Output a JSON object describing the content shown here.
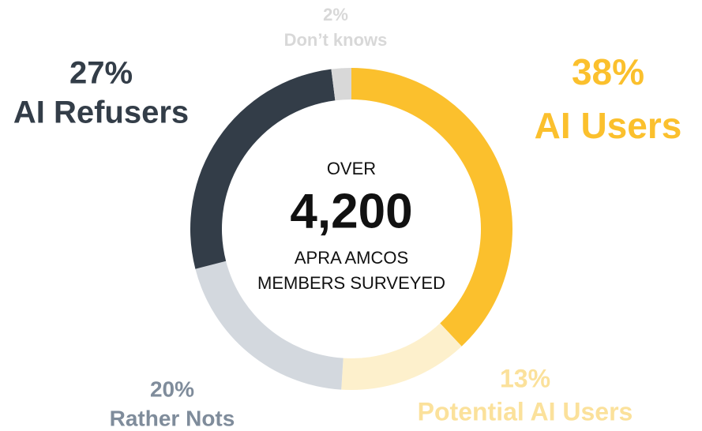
{
  "chart_data": {
    "type": "donut",
    "categories": [
      "AI Users",
      "Potential AI Users",
      "Rather Nots",
      "AI Refusers",
      "Don’t knows"
    ],
    "values": [
      38,
      13,
      20,
      27,
      2
    ],
    "value_labels": [
      "38%",
      "13%",
      "20%",
      "27%",
      "2%"
    ],
    "colors": [
      "#fbc02d",
      "#fdf0cc",
      "#d3d8de",
      "#333d48",
      "#d8d8d8"
    ],
    "label_colors": [
      "#fbc02d",
      "#fbe19b",
      "#7f8c9b",
      "#333d48",
      "#d8d8d8"
    ],
    "center": {
      "lead": "OVER",
      "count": "4,200",
      "lines": [
        "APRA AMCOS",
        "MEMBERS SURVEYED"
      ]
    }
  }
}
